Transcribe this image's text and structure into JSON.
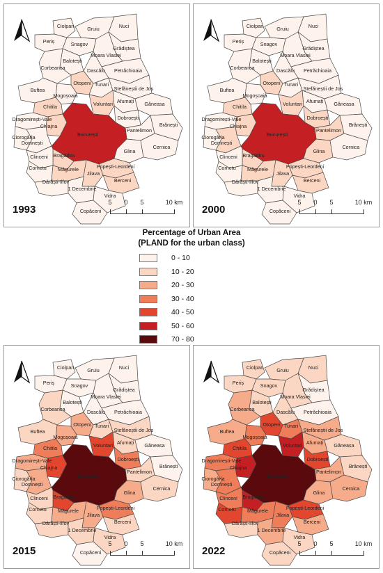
{
  "legend": {
    "title_line1": "Percentage of Urban Area",
    "title_line2": "(PLAND for the urban class)",
    "classes": [
      {
        "label": "0 - 10",
        "color": "#fdf3ec"
      },
      {
        "label": "10 - 20",
        "color": "#fbd7c3"
      },
      {
        "label": "20 - 30",
        "color": "#f6ab8b"
      },
      {
        "label": "30 - 40",
        "color": "#f07d5a"
      },
      {
        "label": "40 - 50",
        "color": "#e2462f"
      },
      {
        "label": "50 - 60",
        "color": "#c41f23"
      },
      {
        "label": "70 - 80",
        "color": "#5a0a0c"
      }
    ]
  },
  "scale": {
    "ticks": [
      "5",
      "0",
      "5",
      "10 km"
    ]
  },
  "place_names": {
    "ciolpan": "Ciolpan",
    "peris": "Periș",
    "gruiu": "Gruiu",
    "nuci": "Nuci",
    "snagov": "Snagov",
    "gradistea": "Grădiștea",
    "moara": "Moara Vlasiei",
    "balotesti": "Balotești",
    "corbeanca": "Corbeanca",
    "dascalu": "Dascălu",
    "petrachioaia": "Petrăchioaia",
    "otopeni": "Otopeni",
    "tunari": "Tunari",
    "buftea": "Buftea",
    "stefanesti": "Ștefăneștii de Jos",
    "afumati": "Afumați",
    "mogosoaia": "Mogoșoaia",
    "voluntari": "Voluntari",
    "ganeasa": "Găneasa",
    "chitila": "Chitila",
    "dobroesti": "Dobroești",
    "dragomiresti": "Dragomirești-Vale",
    "chiajna": "Chiajna",
    "pantelimon": "Pantelimon",
    "branesti": "Brănești",
    "bucuresti": "București",
    "ciorogarla": "Ciorogârla",
    "domnesti": "Domnești",
    "bragadiru": "Bragadiru",
    "clinceni": "Clinceni",
    "glina": "Glina",
    "cernica": "Cernica",
    "cornetu": "Cornetu",
    "magurele": "Măgurele",
    "popesti": "Popești-Leordeni",
    "jilava": "Jilava",
    "darasti": "Dărăști-Ilfov",
    "decembrie": "1 Decembrie",
    "berceni": "Berceni",
    "vidra": "Vidra",
    "copaceni": "Copăceni"
  },
  "maps": [
    {
      "year": "1993",
      "fills": {
        "bucuresti": "#c41f23",
        "voluntari": "#fbd7c3",
        "otopeni": "#fbd7c3",
        "chitila": "#fbd7c3",
        "chiajna": "#fbd7c3",
        "bragadiru": "#fbd7c3",
        "popesti": "#fbd7c3",
        "jilava": "#fbd7c3",
        "magurele": "#fbd7c3",
        "berceni": "#fbd7c3"
      }
    },
    {
      "year": "2000",
      "fills": {
        "bucuresti": "#c41f23",
        "voluntari": "#fbd7c3",
        "otopeni": "#fbd7c3",
        "chitila": "#fbd7c3",
        "chiajna": "#fbd7c3",
        "bragadiru": "#fbd7c3",
        "popesti": "#fbd7c3",
        "jilava": "#fbd7c3",
        "magurele": "#fbd7c3",
        "berceni": "#fbd7c3",
        "glina": "#fbd7c3",
        "pantelimon": "#fbd7c3",
        "dobroesti": "#fbd7c3",
        "domnesti": "#fbd7c3"
      }
    },
    {
      "year": "2015",
      "fills": {
        "bucuresti": "#5a0a0c",
        "voluntari": "#e2462f",
        "otopeni": "#f6ab8b",
        "chitila": "#f07d5a",
        "chiajna": "#e2462f",
        "bragadiru": "#e2462f",
        "popesti": "#f07d5a",
        "jilava": "#f6ab8b",
        "magurele": "#f6ab8b",
        "berceni": "#fbd7c3",
        "glina": "#f6ab8b",
        "pantelimon": "#fbd7c3",
        "dobroesti": "#f07d5a",
        "domnesti": "#f6ab8b",
        "mogosoaia": "#f6ab8b",
        "corbeanca": "#fbd7c3",
        "tunari": "#fbd7c3",
        "dragomiresti": "#f6ab8b",
        "cornetu": "#fbd7c3",
        "clinceni": "#fbd7c3",
        "ciorogarla": "#fbd7c3",
        "buftea": "#fbd7c3",
        "darasti": "#fbd7c3",
        "decembrie": "#fbd7c3",
        "afumati": "#fbd7c3",
        "stefanesti": "#fbd7c3",
        "cernica": "#fbd7c3",
        "vidra": "#fbd7c3"
      }
    },
    {
      "year": "2022",
      "fills": {
        "bucuresti": "#5a0a0c",
        "voluntari": "#c41f23",
        "otopeni": "#e2462f",
        "chitila": "#e2462f",
        "chiajna": "#c41f23",
        "bragadiru": "#c41f23",
        "popesti": "#e2462f",
        "jilava": "#f07d5a",
        "magurele": "#f07d5a",
        "berceni": "#f6ab8b",
        "glina": "#f6ab8b",
        "pantelimon": "#f6ab8b",
        "dobroesti": "#e2462f",
        "domnesti": "#f07d5a",
        "mogosoaia": "#f07d5a",
        "corbeanca": "#f6ab8b",
        "tunari": "#f07d5a",
        "dragomiresti": "#f07d5a",
        "cornetu": "#e2462f",
        "clinceni": "#f07d5a",
        "ciorogarla": "#f6ab8b",
        "buftea": "#f6ab8b",
        "darasti": "#fbd7c3",
        "decembrie": "#f6ab8b",
        "afumati": "#f6ab8b",
        "stefanesti": "#f6ab8b",
        "cernica": "#f6ab8b",
        "vidra": "#fbd7c3",
        "balotesti": "#fbd7c3",
        "ganeasa": "#fbd7c3",
        "branesti": "#fbd7c3",
        "copaceni": "#fbd7c3",
        "gruiu": "#fbd7c3",
        "ciolpan": "#fbd7c3",
        "dascalu": "#fbd7c3",
        "peris": "#fbd7c3",
        "snagov": "#fbd7c3",
        "nuci": "#fbd7c3",
        "moara": "#fbd7c3"
      }
    }
  ]
}
